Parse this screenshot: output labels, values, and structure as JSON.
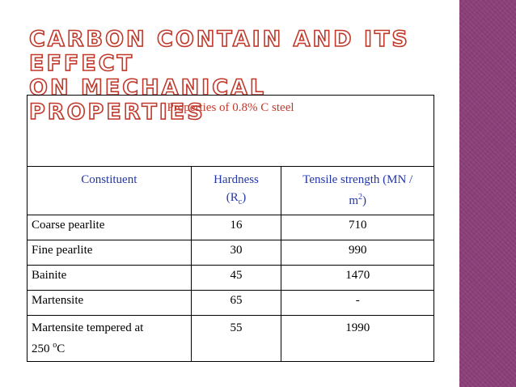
{
  "title": {
    "line1": "Carbon contain and its effect",
    "line2": "on mechanical properties"
  },
  "table": {
    "caption": "Properties of 0.8% C steel",
    "headers": {
      "constituent": "Constituent",
      "hardness_main": "Hardness",
      "hardness_unit_open": "(R",
      "hardness_unit_sub": "c",
      "hardness_unit_close": ")",
      "tensile_main": "Tensile strength (MN /",
      "tensile_unit": "m",
      "tensile_sup": "2",
      "tensile_close": ")"
    },
    "rows": [
      {
        "constituent": "Coarse pearlite",
        "hardness": "16",
        "tensile": "710"
      },
      {
        "constituent": "Fine pearlite",
        "hardness": "30",
        "tensile": "990"
      },
      {
        "constituent": "Bainite",
        "hardness": "45",
        "tensile": "1470"
      },
      {
        "constituent": "Martensite",
        "hardness": "65",
        "tensile": "-"
      }
    ],
    "last_row": {
      "constituent_line1": "Martensite tempered at",
      "constituent_line2": "250 ",
      "degree_sup": "o",
      "degree_unit": "C",
      "hardness": "55",
      "tensile": "1990"
    }
  },
  "colors": {
    "title_outline": "#c0392b",
    "caption": "#c0392b",
    "header_text": "#2236a8",
    "side_stripe": "#8b3f78"
  }
}
